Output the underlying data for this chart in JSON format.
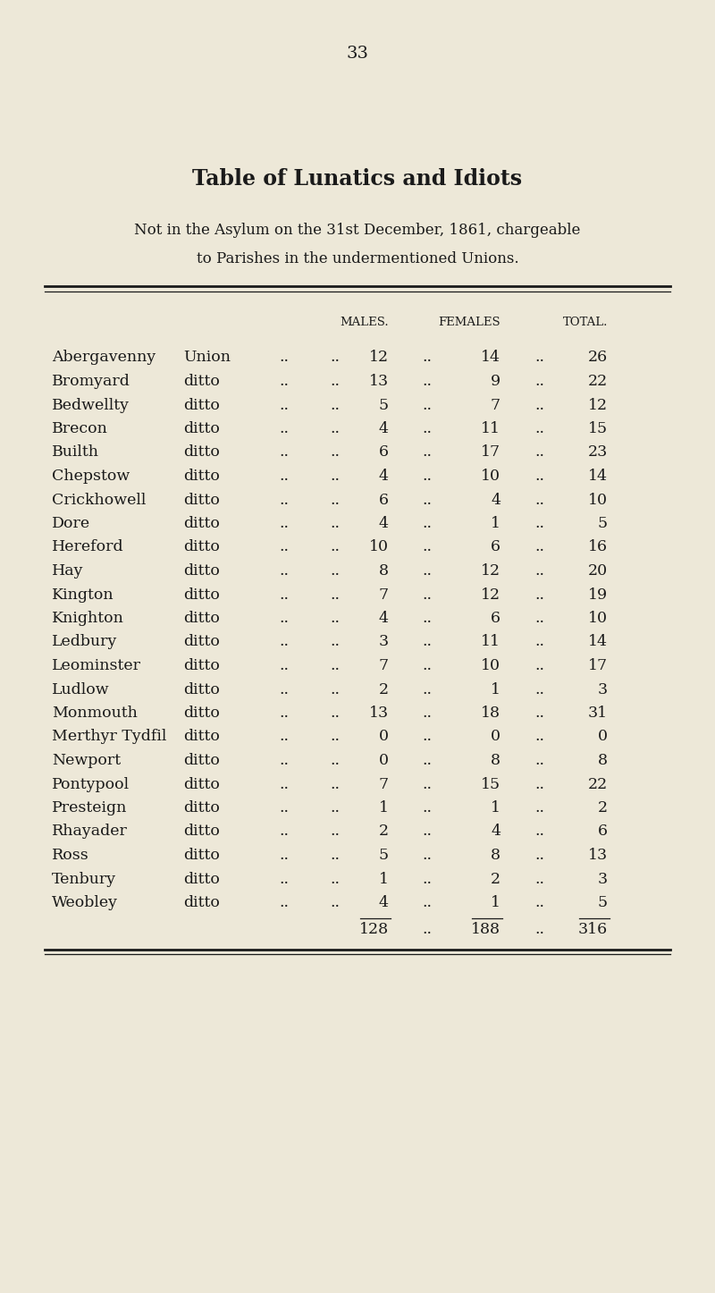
{
  "page_number": "33",
  "title": "Table of Lunatics and Idiots",
  "subtitle1": "Not in the Asylum on the 31st December, 1861, chargeable",
  "subtitle2": "to Parishes in the undermentioned Unions.",
  "col_headers": [
    "MALES.",
    "FEMALES",
    "TOTAL."
  ],
  "rows": [
    {
      "name": "Abergavenny",
      "type": "Union",
      "males": 12,
      "females": 14,
      "total": 26
    },
    {
      "name": "Bromyard",
      "type": "ditto",
      "males": 13,
      "females": 9,
      "total": 22
    },
    {
      "name": "Bedwellty",
      "type": "ditto",
      "males": 5,
      "females": 7,
      "total": 12
    },
    {
      "name": "Brecon",
      "type": "ditto",
      "males": 4,
      "females": 11,
      "total": 15
    },
    {
      "name": "Builth",
      "type": "ditto",
      "males": 6,
      "females": 17,
      "total": 23
    },
    {
      "name": "Chepstow",
      "type": "ditto",
      "males": 4,
      "females": 10,
      "total": 14
    },
    {
      "name": "Crickhowell",
      "type": "ditto",
      "males": 6,
      "females": 4,
      "total": 10
    },
    {
      "name": "Dore",
      "type": "ditto",
      "males": 4,
      "females": 1,
      "total": 5
    },
    {
      "name": "Hereford",
      "type": "ditto",
      "males": 10,
      "females": 6,
      "total": 16
    },
    {
      "name": "Hay",
      "type": "ditto",
      "males": 8,
      "females": 12,
      "total": 20
    },
    {
      "name": "Kington",
      "type": "ditto",
      "males": 7,
      "females": 12,
      "total": 19
    },
    {
      "name": "Knighton",
      "type": "ditto",
      "males": 4,
      "females": 6,
      "total": 10
    },
    {
      "name": "Ledbury",
      "type": "ditto",
      "males": 3,
      "females": 11,
      "total": 14
    },
    {
      "name": "Leominster",
      "type": "ditto",
      "males": 7,
      "females": 10,
      "total": 17
    },
    {
      "name": "Ludlow",
      "type": "ditto",
      "males": 2,
      "females": 1,
      "total": 3
    },
    {
      "name": "Monmouth",
      "type": "ditto",
      "males": 13,
      "females": 18,
      "total": 31
    },
    {
      "name": "Merthyr Tydfil",
      "type": "ditto",
      "males": 0,
      "females": 0,
      "total": 0
    },
    {
      "name": "Newport",
      "type": "ditto",
      "males": 0,
      "females": 8,
      "total": 8
    },
    {
      "name": "Pontypool",
      "type": "ditto",
      "males": 7,
      "females": 15,
      "total": 22
    },
    {
      "name": "Presteign",
      "type": "ditto",
      "males": 1,
      "females": 1,
      "total": 2
    },
    {
      "name": "Rhayader",
      "type": "ditto",
      "males": 2,
      "females": 4,
      "total": 6
    },
    {
      "name": "Ross",
      "type": "ditto",
      "males": 5,
      "females": 8,
      "total": 13
    },
    {
      "name": "Tenbury",
      "type": "ditto",
      "males": 1,
      "females": 2,
      "total": 3
    },
    {
      "name": "Weobley",
      "type": "ditto",
      "males": 4,
      "females": 1,
      "total": 5
    }
  ],
  "totals": {
    "males": 128,
    "females": 188,
    "total": 316
  },
  "bg_color": "#EDE8D8",
  "text_color": "#1a1a1a"
}
